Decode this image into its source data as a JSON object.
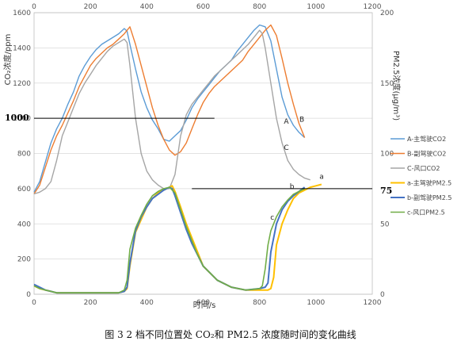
{
  "chart_data": {
    "type": "line",
    "caption": "图 3 2 档不同位置处 CO₂和 PM2.5 浓度随时间的变化曲线",
    "xlabel": "时间/s",
    "ylabel_left": "CO₂浓度/ppm",
    "ylabel_right": "PM2.5浓度(μg/m³)",
    "xlim": [
      0,
      1200
    ],
    "ylim_left": [
      0,
      1600
    ],
    "ylim_right": [
      0,
      200
    ],
    "x_ticks": [
      "0",
      "200",
      "400",
      "600",
      "800",
      "1000",
      "1200"
    ],
    "y_left_ticks": [
      "0",
      "200",
      "400",
      "600",
      "800",
      "1000",
      "1200",
      "1400",
      "1600"
    ],
    "y_right_ticks": [
      "0",
      "50",
      "100",
      "150",
      "200"
    ],
    "reference_lines": [
      {
        "axis": "left",
        "value": 1000,
        "label": "1000",
        "x_range": [
          0,
          640
        ]
      },
      {
        "axis": "right",
        "value": 75,
        "label": "75",
        "x_range": [
          560,
          1200
        ]
      }
    ],
    "annotations": [
      {
        "text": "A",
        "x": 895,
        "y": 970,
        "axis": "left"
      },
      {
        "text": "B",
        "x": 950,
        "y": 980,
        "axis": "left"
      },
      {
        "text": "C",
        "x": 895,
        "y": 820,
        "axis": "left"
      },
      {
        "text": "a",
        "x": 1020,
        "y": 82,
        "axis": "right"
      },
      {
        "text": "b",
        "x": 915,
        "y": 75,
        "axis": "right"
      },
      {
        "text": "c",
        "x": 845,
        "y": 53,
        "axis": "right"
      }
    ],
    "series": [
      {
        "name": "A-主驾驶CO2",
        "axis": "left",
        "color": "#5b9bd5",
        "width": 1.4,
        "x": [
          0,
          20,
          40,
          60,
          80,
          100,
          120,
          140,
          160,
          180,
          200,
          220,
          240,
          260,
          280,
          300,
          320,
          330,
          340,
          360,
          380,
          400,
          420,
          440,
          460,
          480,
          500,
          520,
          540,
          560,
          580,
          600,
          620,
          640,
          660,
          680,
          700,
          720,
          740,
          760,
          780,
          800,
          820,
          840,
          860,
          880,
          900,
          920,
          940,
          960
        ],
        "y": [
          580,
          640,
          750,
          860,
          940,
          1000,
          1080,
          1150,
          1240,
          1300,
          1350,
          1390,
          1420,
          1440,
          1460,
          1480,
          1510,
          1495,
          1420,
          1280,
          1150,
          1060,
          990,
          940,
          880,
          870,
          900,
          930,
          990,
          1060,
          1110,
          1150,
          1190,
          1230,
          1270,
          1300,
          1330,
          1380,
          1420,
          1460,
          1500,
          1530,
          1520,
          1440,
          1280,
          1120,
          1020,
          960,
          920,
          890
        ]
      },
      {
        "name": "B-副驾驶CO2",
        "axis": "left",
        "color": "#ed7d31",
        "width": 1.4,
        "x": [
          0,
          20,
          40,
          60,
          80,
          100,
          120,
          140,
          160,
          180,
          200,
          220,
          240,
          260,
          280,
          300,
          320,
          340,
          360,
          380,
          400,
          420,
          440,
          460,
          480,
          500,
          520,
          540,
          560,
          580,
          600,
          620,
          640,
          660,
          680,
          700,
          720,
          740,
          760,
          780,
          800,
          820,
          840,
          860,
          880,
          900,
          920,
          940,
          960
        ],
        "y": [
          570,
          620,
          720,
          820,
          900,
          960,
          1030,
          1100,
          1180,
          1240,
          1300,
          1340,
          1370,
          1400,
          1420,
          1450,
          1480,
          1520,
          1420,
          1300,
          1180,
          1060,
          960,
          880,
          820,
          790,
          810,
          860,
          940,
          1020,
          1090,
          1140,
          1180,
          1210,
          1240,
          1270,
          1300,
          1330,
          1380,
          1420,
          1460,
          1500,
          1530,
          1470,
          1340,
          1200,
          1080,
          970,
          890
        ]
      },
      {
        "name": "C-风口CO2",
        "axis": "left",
        "color": "#a5a5a5",
        "width": 1.4,
        "x": [
          0,
          20,
          40,
          60,
          80,
          100,
          120,
          140,
          160,
          180,
          200,
          220,
          240,
          260,
          280,
          300,
          320,
          330,
          340,
          360,
          380,
          400,
          420,
          440,
          460,
          480,
          500,
          520,
          540,
          560,
          580,
          600,
          620,
          640,
          660,
          680,
          700,
          720,
          740,
          760,
          780,
          800,
          810,
          820,
          840,
          860,
          880,
          900,
          920,
          940,
          960,
          980
        ],
        "y": [
          570,
          580,
          600,
          640,
          760,
          900,
          980,
          1060,
          1140,
          1200,
          1250,
          1300,
          1340,
          1380,
          1410,
          1430,
          1450,
          1430,
          1300,
          1000,
          800,
          700,
          650,
          620,
          600,
          600,
          680,
          900,
          1020,
          1080,
          1120,
          1160,
          1200,
          1240,
          1270,
          1300,
          1330,
          1360,
          1390,
          1420,
          1460,
          1500,
          1480,
          1400,
          1200,
          1000,
          860,
          760,
          710,
          680,
          660,
          650
        ]
      },
      {
        "name": "a-主驾驶PM2.5",
        "axis": "right",
        "color": "#ffc000",
        "width": 2,
        "x": [
          0,
          20,
          40,
          60,
          80,
          100,
          150,
          200,
          250,
          300,
          320,
          330,
          340,
          360,
          380,
          400,
          420,
          440,
          460,
          480,
          490,
          500,
          520,
          540,
          560,
          580,
          600,
          650,
          700,
          750,
          800,
          820,
          830,
          840,
          850,
          860,
          880,
          900,
          920,
          940,
          960,
          980,
          1000,
          1020
        ],
        "y": [
          6,
          4,
          3,
          2,
          1,
          1,
          1,
          1,
          1,
          1,
          2,
          4,
          20,
          44,
          53,
          62,
          68,
          72,
          74,
          76,
          77,
          73,
          62,
          50,
          40,
          30,
          20,
          10,
          5,
          3,
          3,
          3,
          3,
          4,
          12,
          35,
          50,
          60,
          68,
          72,
          74,
          76,
          77,
          78
        ]
      },
      {
        "name": "b-副驾驶PM2.5",
        "axis": "right",
        "color": "#4472c4",
        "width": 2,
        "x": [
          0,
          20,
          40,
          60,
          80,
          100,
          150,
          200,
          250,
          300,
          320,
          330,
          340,
          360,
          380,
          400,
          420,
          440,
          460,
          480,
          490,
          500,
          520,
          540,
          560,
          580,
          600,
          650,
          700,
          750,
          800,
          820,
          830,
          840,
          860,
          880,
          900,
          920,
          940,
          960
        ],
        "y": [
          7,
          5,
          3,
          2,
          1,
          1,
          1,
          1,
          1,
          1,
          2,
          5,
          22,
          45,
          55,
          62,
          68,
          71,
          74,
          76,
          75,
          70,
          58,
          46,
          36,
          28,
          20,
          10,
          5,
          3,
          4,
          5,
          8,
          30,
          50,
          60,
          66,
          70,
          73,
          76
        ]
      },
      {
        "name": "c-风口PM2.5",
        "axis": "right",
        "color": "#70ad47",
        "width": 1.6,
        "x": [
          0,
          20,
          40,
          60,
          80,
          100,
          150,
          200,
          250,
          300,
          320,
          330,
          340,
          360,
          380,
          400,
          420,
          440,
          460,
          480,
          500,
          520,
          540,
          560,
          580,
          600,
          650,
          700,
          750,
          800,
          810,
          820,
          830,
          840,
          860,
          880,
          900,
          920,
          940,
          960
        ],
        "y": [
          6,
          4,
          3,
          2,
          1,
          1,
          1,
          1,
          1,
          1,
          3,
          10,
          32,
          47,
          56,
          64,
          70,
          73,
          75,
          76,
          72,
          60,
          48,
          38,
          28,
          20,
          10,
          5,
          3,
          4,
          6,
          18,
          35,
          45,
          55,
          62,
          67,
          71,
          73,
          75
        ]
      }
    ],
    "legend_position": "right"
  }
}
